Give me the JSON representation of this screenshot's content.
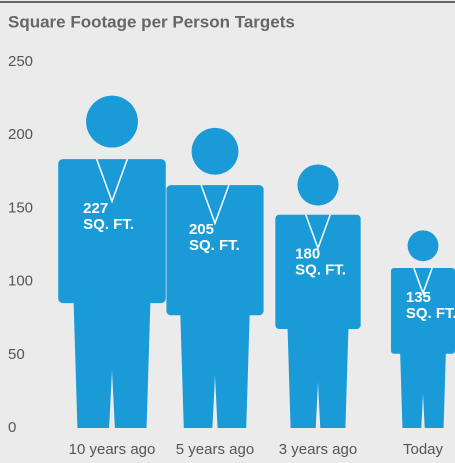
{
  "chart_data": {
    "type": "pictograph",
    "title": "Square Footage per Person Targets",
    "categories": [
      "10 years ago",
      "5 years ago",
      "3 years ago",
      "Today"
    ],
    "values": [
      227,
      205,
      180,
      135
    ],
    "value_labels": [
      "227 SQ. FT.",
      "205 SQ. FT.",
      "180 SQ. FT.",
      "135 SQ. FT."
    ],
    "color": "#1a9bd7",
    "ylim": [
      0,
      250
    ],
    "yticks": [
      0,
      50,
      100,
      150,
      200,
      250
    ],
    "grid": false
  }
}
